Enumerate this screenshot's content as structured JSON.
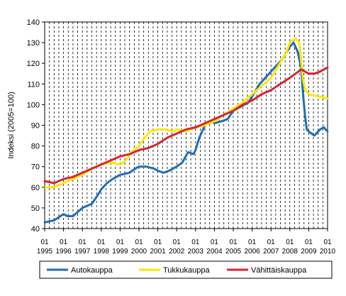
{
  "chart_data": {
    "type": "line",
    "title": "",
    "xlabel": "",
    "ylabel": "Indeksi (2005=100)",
    "ylim": [
      40,
      140
    ],
    "yticks": [
      40,
      50,
      60,
      70,
      80,
      90,
      100,
      110,
      120,
      130,
      140
    ],
    "xlim": [
      1995.0,
      2010.0
    ],
    "x_tick_top": [
      "01",
      "01",
      "01",
      "01",
      "01",
      "01",
      "01",
      "01",
      "01",
      "01",
      "01",
      "01",
      "01",
      "01",
      "01",
      "01"
    ],
    "x_tick_bottom": [
      "1995",
      "1996",
      "1997",
      "1998",
      "1999",
      "2000",
      "2001",
      "2002",
      "2003",
      "2004",
      "2005",
      "2006",
      "2007",
      "2008",
      "2009",
      "2010"
    ],
    "grid": "vertical dashed, quarterly",
    "legend_position": "bottom",
    "series": [
      {
        "name": "Autokauppa",
        "color": "#1f6fb5",
        "x": [
          1995.0,
          1995.5,
          1996.0,
          1996.2,
          1996.5,
          1997.0,
          1997.5,
          1997.8,
          1998.0,
          1998.3,
          1998.6,
          1999.0,
          1999.5,
          1999.8,
          2000.0,
          2000.4,
          2000.8,
          2001.0,
          2001.3,
          2001.6,
          2002.0,
          2002.3,
          2002.6,
          2002.9,
          2003.0,
          2003.2,
          2003.5,
          2003.8,
          2004.0,
          2004.4,
          2004.7,
          2005.0,
          2005.4,
          2005.8,
          2006.0,
          2006.4,
          2006.8,
          2007.0,
          2007.3,
          2007.6,
          2008.0,
          2008.2,
          2008.4,
          2008.6,
          2008.7,
          2008.8,
          2008.9,
          2009.0,
          2009.3,
          2009.6,
          2009.8,
          2010.0
        ],
        "values": [
          43,
          44,
          47,
          46,
          46,
          50,
          52,
          56,
          59,
          62,
          64,
          66,
          67,
          69,
          70,
          70,
          69,
          68,
          67,
          68,
          70,
          72,
          77,
          76,
          78,
          84,
          90,
          92,
          91,
          92,
          93,
          97,
          99,
          101,
          104,
          110,
          114,
          116,
          119,
          122,
          128,
          130,
          126,
          118,
          105,
          95,
          88,
          87,
          85,
          88,
          89,
          87
        ]
      },
      {
        "name": "Tukkukauppa",
        "color": "#ffe600",
        "x": [
          1995.0,
          1995.5,
          1996.0,
          1996.5,
          1997.0,
          1997.5,
          1998.0,
          1998.5,
          1999.0,
          1999.3,
          1999.6,
          2000.0,
          2000.3,
          2000.6,
          2001.0,
          2001.4,
          2001.8,
          2002.0,
          2002.5,
          2003.0,
          2003.5,
          2004.0,
          2004.5,
          2005.0,
          2005.5,
          2006.0,
          2006.5,
          2007.0,
          2007.4,
          2007.8,
          2008.0,
          2008.3,
          2008.5,
          2008.6,
          2008.7,
          2008.8,
          2009.0,
          2009.5,
          2010.0
        ],
        "values": [
          60,
          60,
          62,
          64,
          66,
          69,
          71,
          72,
          71,
          73,
          77,
          80,
          84,
          87,
          88,
          88,
          87,
          88,
          87,
          89,
          90,
          92,
          95,
          98,
          101,
          105,
          109,
          113,
          119,
          125,
          130,
          132,
          130,
          121,
          112,
          108,
          105,
          104,
          103
        ]
      },
      {
        "name": "Vähittäiskauppa",
        "color": "#d4272f",
        "x": [
          1995.0,
          1995.5,
          1996.0,
          1996.5,
          1997.0,
          1997.5,
          1998.0,
          1998.5,
          1999.0,
          1999.5,
          2000.0,
          2000.5,
          2001.0,
          2001.5,
          2002.0,
          2002.5,
          2003.0,
          2003.5,
          2004.0,
          2004.5,
          2005.0,
          2005.5,
          2006.0,
          2006.5,
          2007.0,
          2007.5,
          2008.0,
          2008.3,
          2008.6,
          2008.8,
          2009.0,
          2009.3,
          2009.6,
          2010.0
        ],
        "values": [
          63,
          62,
          64,
          65,
          67,
          69,
          71,
          73,
          75,
          76,
          78,
          79,
          81,
          84,
          86,
          88,
          89,
          91,
          93,
          95,
          97,
          100,
          102,
          105,
          107,
          110,
          113,
          115,
          117,
          116,
          115,
          115,
          116,
          118
        ]
      }
    ]
  }
}
